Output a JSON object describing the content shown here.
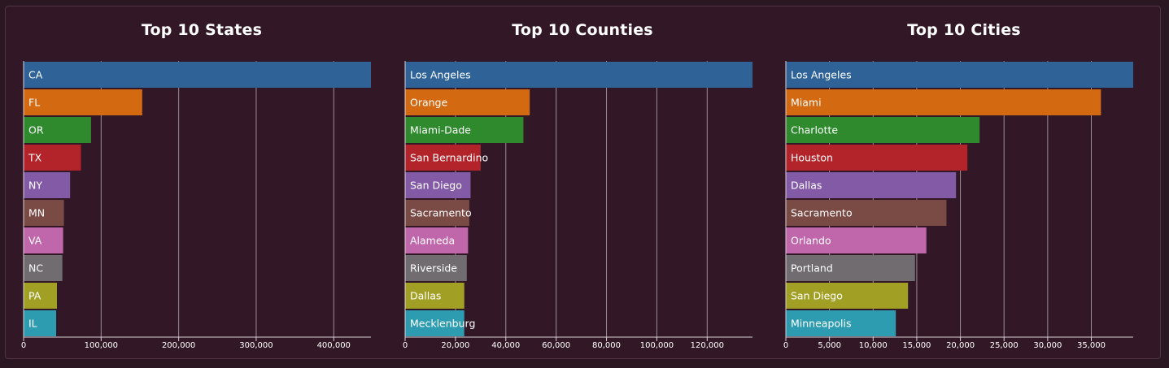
{
  "chart_data": [
    {
      "type": "bar",
      "orientation": "horizontal",
      "title": "Top 10 States",
      "categories": [
        "CA",
        "FL",
        "OR",
        "TX",
        "NY",
        "MN",
        "VA",
        "NC",
        "PA",
        "IL"
      ],
      "values": [
        448000,
        153000,
        87000,
        74000,
        60000,
        52000,
        51000,
        50000,
        43000,
        42000
      ],
      "xlim": [
        0,
        448000
      ],
      "ticks": [
        0,
        100000,
        200000,
        300000,
        400000
      ],
      "tick_labels": [
        "0",
        "100,000",
        "200,000",
        "300,000",
        "400,000"
      ],
      "grid": true,
      "legend": "none"
    },
    {
      "type": "bar",
      "orientation": "horizontal",
      "title": "Top 10 Counties",
      "categories": [
        "Los Angeles",
        "Orange",
        "Miami-Dade",
        "San Bernardino",
        "San Diego",
        "Sacramento",
        "Alameda",
        "Riverside",
        "Dallas",
        "Mecklenburg"
      ],
      "values": [
        138000,
        49500,
        47000,
        30000,
        26000,
        25500,
        25000,
        24500,
        23500,
        23500
      ],
      "xlim": [
        0,
        138000
      ],
      "ticks": [
        0,
        20000,
        40000,
        60000,
        80000,
        100000,
        120000
      ],
      "tick_labels": [
        "0",
        "20,000",
        "40,000",
        "60,000",
        "80,000",
        "100,000",
        "120,000"
      ],
      "grid": true,
      "legend": "none"
    },
    {
      "type": "bar",
      "orientation": "horizontal",
      "title": "Top 10 Cities",
      "categories": [
        "Los Angeles",
        "Miami",
        "Charlotte",
        "Houston",
        "Dallas",
        "Sacramento",
        "Orlando",
        "Portland",
        "San Diego",
        "Minneapolis"
      ],
      "values": [
        39800,
        36100,
        22200,
        20800,
        19500,
        18400,
        16100,
        14800,
        14000,
        12600
      ],
      "xlim": [
        0,
        39800
      ],
      "ticks": [
        0,
        5000,
        10000,
        15000,
        20000,
        25000,
        30000,
        35000
      ],
      "tick_labels": [
        "0",
        "5,000",
        "10,000",
        "15,000",
        "20,000",
        "25,000",
        "30,000",
        "35,000"
      ],
      "grid": true,
      "legend": "none"
    }
  ],
  "colors": [
    "#2f6397",
    "#d36a12",
    "#2e8a2d",
    "#b3242a",
    "#835aa6",
    "#7a4a45",
    "#c066aa",
    "#706c70",
    "#a2a024",
    "#2e9cb0"
  ],
  "background": "#321826"
}
